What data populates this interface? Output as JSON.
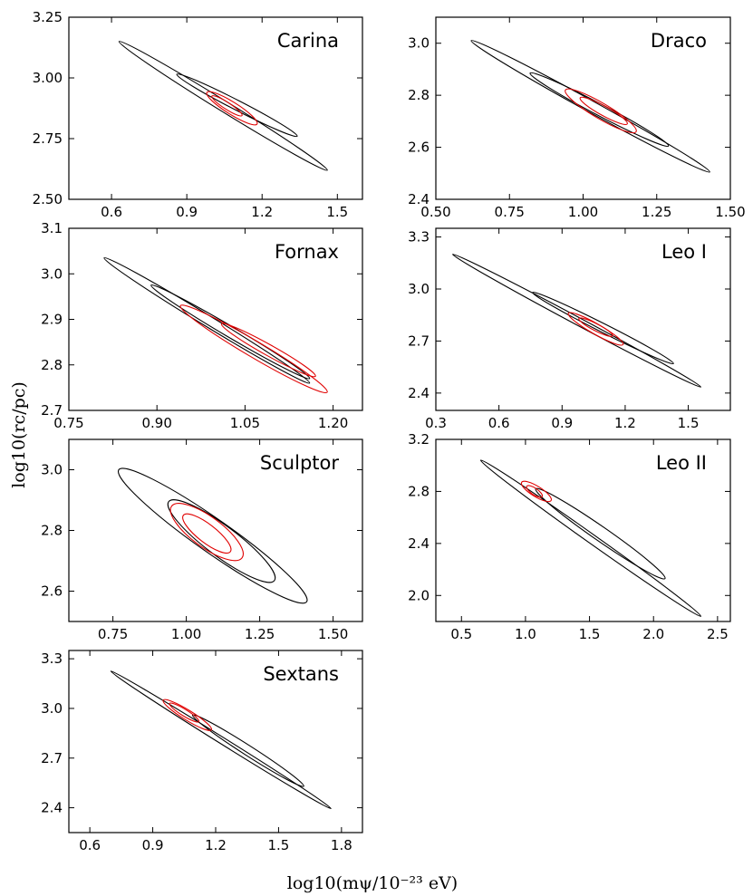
{
  "figure": {
    "xlabel": "log10(mψ/10⁻²³ eV)",
    "ylabel": "log10(rc/pc)"
  },
  "colors": {
    "outer_contours": "#000000",
    "inner_contours": "#e00000"
  },
  "chart_data": [
    {
      "type": "contour",
      "title": "Carina",
      "xlim": [
        0.43,
        1.6
      ],
      "ylim": [
        2.5,
        3.25
      ],
      "xticks": [
        0.6,
        0.9,
        1.2,
        1.5
      ],
      "xtick_labels": [
        "0.6",
        "0.9",
        "1.2",
        "1.5"
      ],
      "yticks": [
        2.5,
        2.75,
        3.0,
        3.25
      ],
      "ytick_labels": [
        "2.50",
        "2.75",
        "3.00",
        "3.25"
      ],
      "contours": [
        {
          "color": "black",
          "center": [
            1.04,
            2.885
          ],
          "tip1": [
            0.63,
            3.15
          ],
          "tip2": [
            1.46,
            2.62
          ],
          "width": 0.022
        },
        {
          "color": "black",
          "center": [
            1.1,
            2.885
          ],
          "tip1": [
            0.86,
            3.015
          ],
          "tip2": [
            1.34,
            2.76
          ],
          "width": 0.02
        },
        {
          "color": "red",
          "center": [
            1.06,
            2.875
          ],
          "tip1": [
            0.98,
            2.94
          ],
          "tip2": [
            1.18,
            2.81
          ],
          "width": 0.025
        },
        {
          "color": "red",
          "center": [
            1.06,
            2.885
          ],
          "tip1": [
            1.0,
            2.925
          ],
          "tip2": [
            1.12,
            2.845
          ],
          "width": 0.014
        }
      ]
    },
    {
      "type": "contour",
      "title": "Draco",
      "xlim": [
        0.5,
        1.5
      ],
      "ylim": [
        2.4,
        3.1
      ],
      "xticks": [
        0.5,
        0.75,
        1.0,
        1.25,
        1.5
      ],
      "xtick_labels": [
        "0.50",
        "0.75",
        "1.00",
        "1.25",
        "1.50"
      ],
      "yticks": [
        2.4,
        2.6,
        2.8,
        3.0
      ],
      "ytick_labels": [
        "2.4",
        "2.6",
        "2.8",
        "3.0"
      ],
      "contours": [
        {
          "color": "black",
          "center": [
            1.02,
            2.755
          ],
          "tip1": [
            0.62,
            3.01
          ],
          "tip2": [
            1.43,
            2.505
          ],
          "width": 0.022
        },
        {
          "color": "black",
          "center": [
            1.05,
            2.745
          ],
          "tip1": [
            0.82,
            2.885
          ],
          "tip2": [
            1.29,
            2.605
          ],
          "width": 0.022
        },
        {
          "color": "red",
          "center": [
            1.06,
            2.74
          ],
          "tip1": [
            0.94,
            2.82
          ],
          "tip2": [
            1.18,
            2.66
          ],
          "width": 0.03
        },
        {
          "color": "red",
          "center": [
            1.07,
            2.74
          ],
          "tip1": [
            0.99,
            2.79
          ],
          "tip2": [
            1.15,
            2.69
          ],
          "width": 0.018
        }
      ]
    },
    {
      "type": "contour",
      "title": "Fornax",
      "xlim": [
        0.75,
        1.25
      ],
      "ylim": [
        2.7,
        3.1
      ],
      "xticks": [
        0.75,
        0.9,
        1.05,
        1.2
      ],
      "xtick_labels": [
        "0.75",
        "0.90",
        "1.05",
        "1.20"
      ],
      "yticks": [
        2.7,
        2.8,
        2.9,
        3.0,
        3.1
      ],
      "ytick_labels": [
        "2.7",
        "2.8",
        "2.9",
        "3.0",
        "3.1"
      ],
      "contours": [
        {
          "color": "black",
          "center": [
            0.99,
            2.89
          ],
          "tip1": [
            0.81,
            3.035
          ],
          "tip2": [
            1.16,
            2.76
          ],
          "width": 0.012
        },
        {
          "color": "black",
          "center": [
            1.04,
            2.87
          ],
          "tip1": [
            0.89,
            2.975
          ],
          "tip2": [
            1.16,
            2.77
          ],
          "width": 0.012
        },
        {
          "color": "red",
          "center": [
            1.06,
            2.835
          ],
          "tip1": [
            0.94,
            2.93
          ],
          "tip2": [
            1.19,
            2.74
          ],
          "width": 0.018
        },
        {
          "color": "red",
          "center": [
            1.09,
            2.835
          ],
          "tip1": [
            1.01,
            2.89
          ],
          "tip2": [
            1.17,
            2.775
          ],
          "width": 0.012
        }
      ]
    },
    {
      "type": "contour",
      "title": "Leo I",
      "xlim": [
        0.3,
        1.7
      ],
      "ylim": [
        2.3,
        3.35
      ],
      "xticks": [
        0.3,
        0.6,
        0.9,
        1.2,
        1.5
      ],
      "xtick_labels": [
        "0.3",
        "0.6",
        "0.9",
        "1.2",
        "1.5"
      ],
      "yticks": [
        2.4,
        2.7,
        3.0,
        3.3
      ],
      "ytick_labels": [
        "2.4",
        "2.7",
        "3.0",
        "3.3"
      ],
      "contours": [
        {
          "color": "black",
          "center": [
            0.97,
            2.82
          ],
          "tip1": [
            0.38,
            3.2
          ],
          "tip2": [
            1.56,
            2.435
          ],
          "width": 0.022
        },
        {
          "color": "black",
          "center": [
            1.1,
            2.78
          ],
          "tip1": [
            0.76,
            2.98
          ],
          "tip2": [
            1.43,
            2.57
          ],
          "width": 0.025
        },
        {
          "color": "red",
          "center": [
            1.06,
            2.77
          ],
          "tip1": [
            0.93,
            2.86
          ],
          "tip2": [
            1.19,
            2.68
          ],
          "width": 0.03
        },
        {
          "color": "red",
          "center": [
            1.06,
            2.78
          ],
          "tip1": [
            0.98,
            2.83
          ],
          "tip2": [
            1.14,
            2.73
          ],
          "width": 0.02
        }
      ]
    },
    {
      "type": "contour",
      "title": "Sculptor",
      "xlim": [
        0.6,
        1.6
      ],
      "ylim": [
        2.5,
        3.1
      ],
      "xticks": [
        0.75,
        1.0,
        1.25,
        1.5
      ],
      "xtick_labels": [
        "0.75",
        "1.00",
        "1.25",
        "1.50"
      ],
      "yticks": [
        2.6,
        2.8,
        3.0
      ],
      "ytick_labels": [
        "2.6",
        "2.8",
        "3.0"
      ],
      "contours": [
        {
          "color": "black",
          "center": [
            1.09,
            2.78
          ],
          "tip1": [
            0.77,
            3.0
          ],
          "tip2": [
            1.41,
            2.565
          ],
          "width": 0.055
        },
        {
          "color": "black",
          "center": [
            1.12,
            2.76
          ],
          "tip1": [
            0.94,
            2.895
          ],
          "tip2": [
            1.3,
            2.635
          ],
          "width": 0.05
        },
        {
          "color": "red",
          "center": [
            1.07,
            2.79
          ],
          "tip1": [
            0.95,
            2.88
          ],
          "tip2": [
            1.19,
            2.71
          ],
          "width": 0.05
        },
        {
          "color": "red",
          "center": [
            1.07,
            2.79
          ],
          "tip1": [
            0.99,
            2.85
          ],
          "tip2": [
            1.15,
            2.73
          ],
          "width": 0.03
        }
      ]
    },
    {
      "type": "contour",
      "title": "Leo II",
      "xlim": [
        0.3,
        2.6
      ],
      "ylim": [
        1.8,
        3.2
      ],
      "xticks": [
        0.5,
        1.0,
        1.5,
        2.0,
        2.5
      ],
      "xtick_labels": [
        "0.5",
        "1.0",
        "1.5",
        "2.0",
        "2.5"
      ],
      "yticks": [
        2.0,
        2.4,
        2.8,
        3.2
      ],
      "ytick_labels": [
        "2.0",
        "2.4",
        "2.8",
        "3.2"
      ],
      "contours": [
        {
          "color": "black",
          "center": [
            1.5,
            2.44
          ],
          "tip1": [
            0.65,
            3.04
          ],
          "tip2": [
            2.37,
            1.84
          ],
          "width": 0.035
        },
        {
          "color": "black",
          "center": [
            1.6,
            2.44
          ],
          "tip1": [
            1.08,
            2.82
          ],
          "tip2": [
            2.09,
            2.13
          ],
          "width": 0.055
        },
        {
          "color": "red",
          "center": [
            1.09,
            2.8
          ],
          "tip1": [
            0.97,
            2.87
          ],
          "tip2": [
            1.2,
            2.73
          ],
          "width": 0.04
        },
        {
          "color": "red",
          "center": [
            1.07,
            2.8
          ],
          "tip1": [
            1.01,
            2.84
          ],
          "tip2": [
            1.13,
            2.76
          ],
          "width": 0.025
        }
      ]
    },
    {
      "type": "contour",
      "title": "Sextans",
      "xlim": [
        0.5,
        1.9
      ],
      "ylim": [
        2.25,
        3.35
      ],
      "xticks": [
        0.6,
        0.9,
        1.2,
        1.5,
        1.8
      ],
      "xtick_labels": [
        "0.6",
        "0.9",
        "1.2",
        "1.5",
        "1.8"
      ],
      "yticks": [
        2.4,
        2.7,
        3.0,
        3.3
      ],
      "ytick_labels": [
        "2.4",
        "2.7",
        "3.0",
        "3.3"
      ],
      "contours": [
        {
          "color": "black",
          "center": [
            1.2,
            2.815
          ],
          "tip1": [
            0.7,
            3.225
          ],
          "tip2": [
            1.75,
            2.395
          ],
          "width": 0.02
        },
        {
          "color": "black",
          "center": [
            1.35,
            2.74
          ],
          "tip1": [
            1.09,
            2.96
          ],
          "tip2": [
            1.62,
            2.53
          ],
          "width": 0.03
        },
        {
          "color": "red",
          "center": [
            1.06,
            2.96
          ],
          "tip1": [
            0.95,
            3.05
          ],
          "tip2": [
            1.18,
            2.87
          ],
          "width": 0.03
        },
        {
          "color": "red",
          "center": [
            1.05,
            2.98
          ],
          "tip1": [
            0.98,
            3.03
          ],
          "tip2": [
            1.12,
            2.92
          ],
          "width": 0.02
        }
      ]
    }
  ]
}
